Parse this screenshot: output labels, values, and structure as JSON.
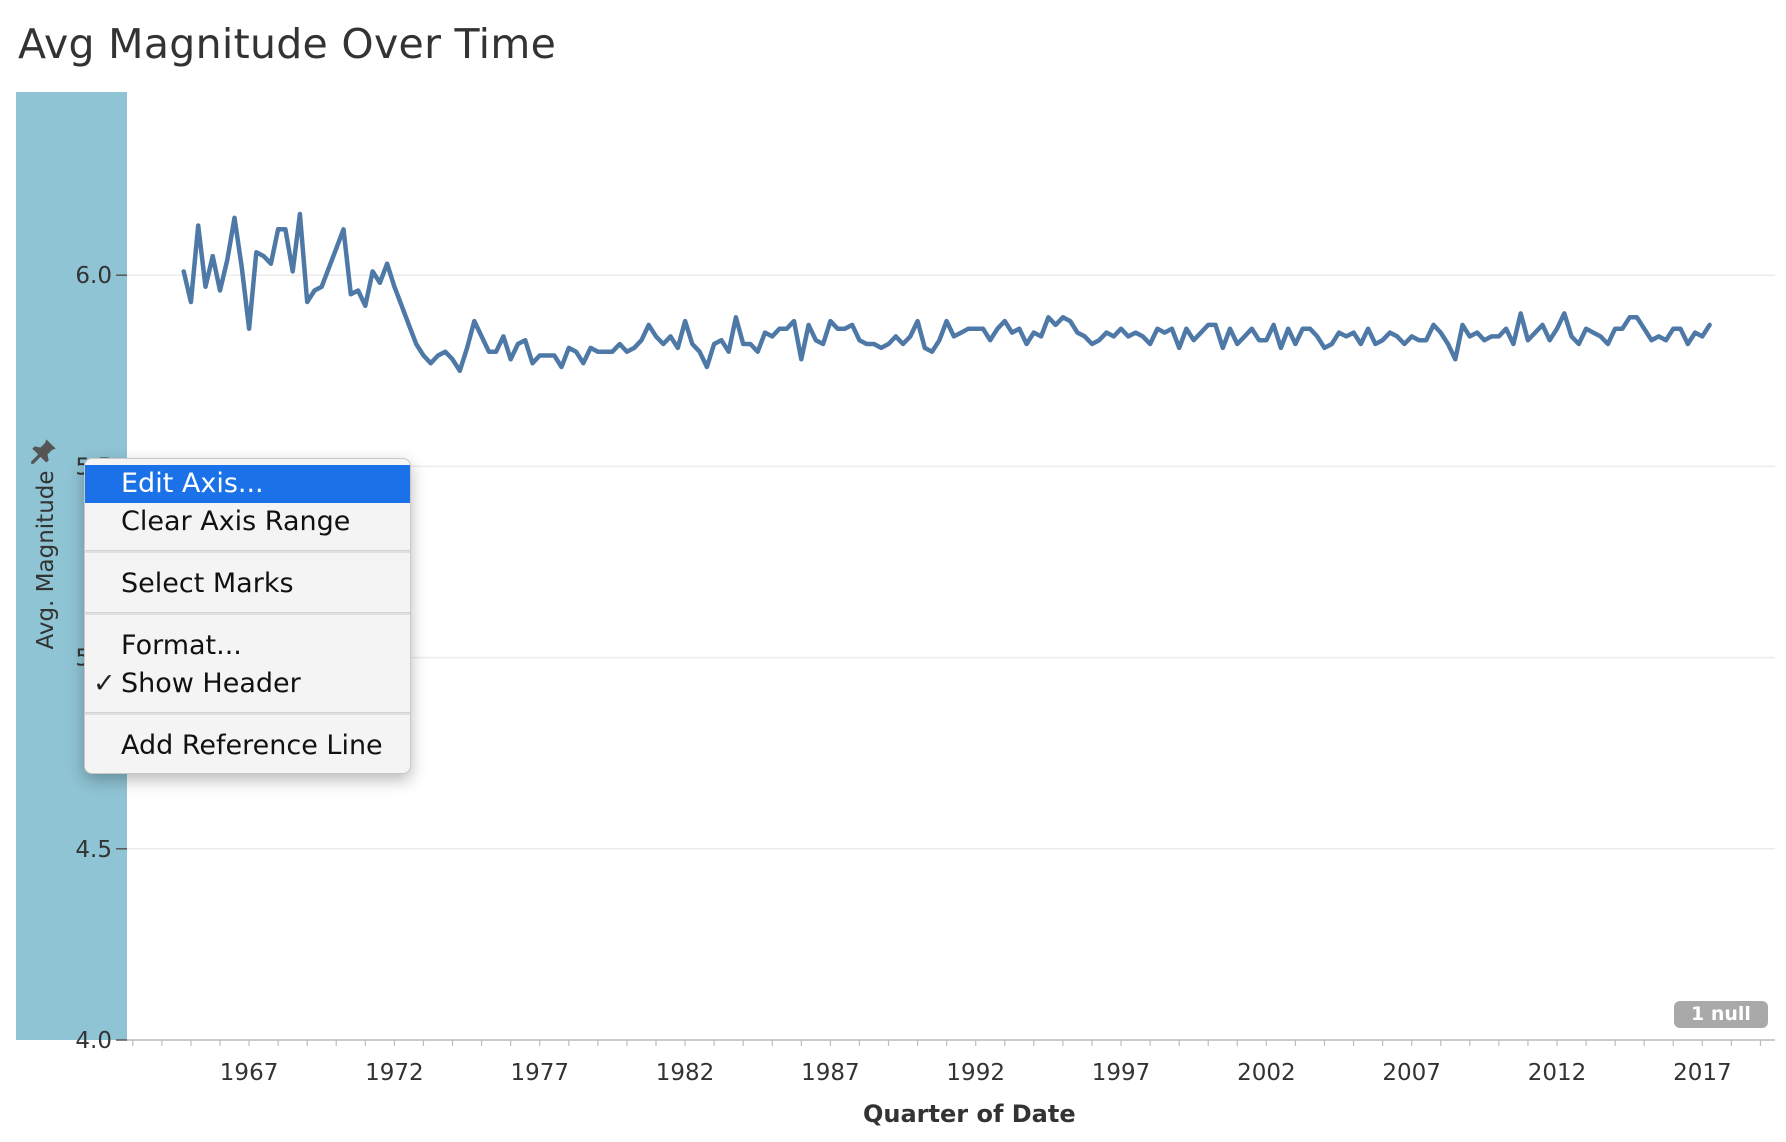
{
  "title": "Avg Magnitude Over Time",
  "null_badge": "1 null",
  "context_menu": {
    "items": [
      {
        "label": "Edit Axis...",
        "active": true,
        "checked": false
      },
      {
        "label": "Clear Axis Range",
        "active": false,
        "checked": false
      },
      {
        "label": "Select Marks",
        "active": false,
        "checked": false
      },
      {
        "label": "Format...",
        "active": false,
        "checked": false
      },
      {
        "label": "Show Header",
        "active": false,
        "checked": true
      },
      {
        "label": "Add Reference Line",
        "active": false,
        "checked": false
      }
    ],
    "check_glyph": "✓"
  },
  "colors": {
    "line": "#4e79a7",
    "axis_band": "#8fc4d4",
    "menu_highlight": "#1b72e8"
  },
  "chart_data": {
    "type": "line",
    "title": "Avg Magnitude Over Time",
    "xlabel": "Quarter of Date",
    "ylabel": "Avg. Magnitude",
    "x_ticks": [
      "1967",
      "1972",
      "1977",
      "1982",
      "1987",
      "1992",
      "1997",
      "2002",
      "2007",
      "2012",
      "2017"
    ],
    "x_tick_values": [
      1967,
      1972,
      1977,
      1982,
      1987,
      1992,
      1997,
      2002,
      2007,
      2012,
      2017
    ],
    "y_ticks": [
      "6.0",
      "5.5",
      "5.0",
      "4.5",
      "4.0"
    ],
    "y_tick_values": [
      6.0,
      5.5,
      5.0,
      4.5,
      4.0
    ],
    "xlim": [
      1962.8,
      2019.5
    ],
    "ylim": [
      4.0,
      6.5
    ],
    "grid": true,
    "series": [
      {
        "x_start_year": 1964.75,
        "interval_years": 0.25,
        "values": [
          6.01,
          5.93,
          6.13,
          5.97,
          6.05,
          5.96,
          6.04,
          6.15,
          6.02,
          5.86,
          6.06,
          6.05,
          6.03,
          6.12,
          6.12,
          6.01,
          6.16,
          5.93,
          5.96,
          5.97,
          6.02,
          6.07,
          6.12,
          5.95,
          5.96,
          5.92,
          6.01,
          5.98,
          6.03,
          5.97,
          5.92,
          5.87,
          5.82,
          5.79,
          5.77,
          5.79,
          5.8,
          5.78,
          5.75,
          5.81,
          5.88,
          5.84,
          5.8,
          5.8,
          5.84,
          5.78,
          5.82,
          5.83,
          5.77,
          5.79,
          5.79,
          5.79,
          5.76,
          5.81,
          5.8,
          5.77,
          5.81,
          5.8,
          5.8,
          5.8,
          5.82,
          5.8,
          5.81,
          5.83,
          5.87,
          5.84,
          5.82,
          5.84,
          5.81,
          5.88,
          5.82,
          5.8,
          5.76,
          5.82,
          5.83,
          5.8,
          5.89,
          5.82,
          5.82,
          5.8,
          5.85,
          5.84,
          5.86,
          5.86,
          5.88,
          5.78,
          5.87,
          5.83,
          5.82,
          5.88,
          5.86,
          5.86,
          5.87,
          5.83,
          5.82,
          5.82,
          5.81,
          5.82,
          5.84,
          5.82,
          5.84,
          5.88,
          5.81,
          5.8,
          5.83,
          5.88,
          5.84,
          5.85,
          5.86,
          5.86,
          5.86,
          5.83,
          5.86,
          5.88,
          5.85,
          5.86,
          5.82,
          5.85,
          5.84,
          5.89,
          5.87,
          5.89,
          5.88,
          5.85,
          5.84,
          5.82,
          5.83,
          5.85,
          5.84,
          5.86,
          5.84,
          5.85,
          5.84,
          5.82,
          5.86,
          5.85,
          5.86,
          5.81,
          5.86,
          5.83,
          5.85,
          5.87,
          5.87,
          5.81,
          5.86,
          5.82,
          5.84,
          5.86,
          5.83,
          5.83,
          5.87,
          5.81,
          5.86,
          5.82,
          5.86,
          5.86,
          5.84,
          5.81,
          5.82,
          5.85,
          5.84,
          5.85,
          5.82,
          5.86,
          5.82,
          5.83,
          5.85,
          5.84,
          5.82,
          5.84,
          5.83,
          5.83,
          5.87,
          5.85,
          5.82,
          5.78,
          5.87,
          5.84,
          5.85,
          5.83,
          5.84,
          5.84,
          5.86,
          5.82,
          5.9,
          5.83,
          5.85,
          5.87,
          5.83,
          5.86,
          5.9,
          5.84,
          5.82,
          5.86,
          5.85,
          5.84,
          5.82,
          5.86,
          5.86,
          5.89,
          5.89,
          5.86,
          5.83,
          5.84,
          5.83,
          5.86,
          5.86,
          5.82,
          5.85,
          5.84,
          5.87
        ]
      }
    ]
  }
}
